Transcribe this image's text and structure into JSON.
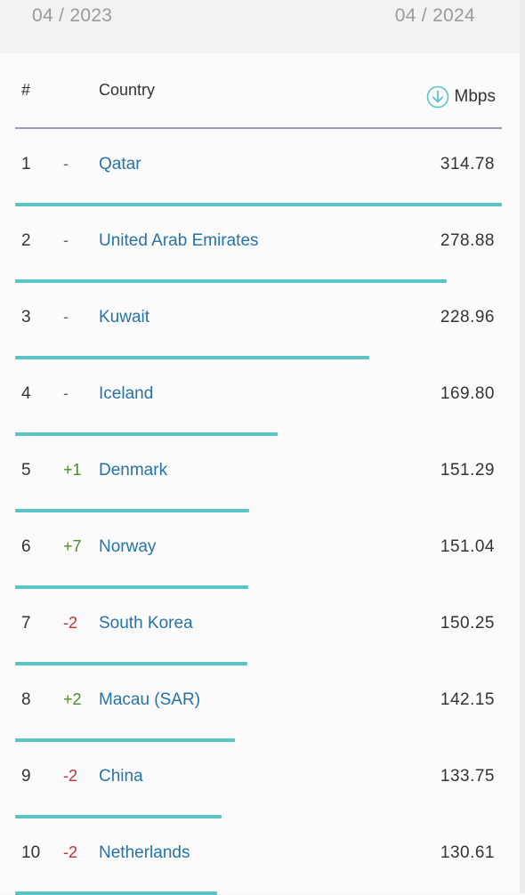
{
  "date_range": {
    "start": "04 / 2023",
    "end": "04 / 2024"
  },
  "table": {
    "header": {
      "rank": "#",
      "country": "Country",
      "speed": "Mbps"
    },
    "rows": [
      {
        "rank": "1",
        "change": "-",
        "country": "Qatar",
        "speed": "314.78"
      },
      {
        "rank": "2",
        "change": "-",
        "country": "United Arab Emirates",
        "speed": "278.88"
      },
      {
        "rank": "3",
        "change": "-",
        "country": "Kuwait",
        "speed": "228.96"
      },
      {
        "rank": "4",
        "change": "-",
        "country": "Iceland",
        "speed": "169.80"
      },
      {
        "rank": "5",
        "change": "+1",
        "country": "Denmark",
        "speed": "151.29"
      },
      {
        "rank": "6",
        "change": "+7",
        "country": "Norway",
        "speed": "151.04"
      },
      {
        "rank": "7",
        "change": "-2",
        "country": "South Korea",
        "speed": "150.25"
      },
      {
        "rank": "8",
        "change": "+2",
        "country": "Macau (SAR)",
        "speed": "142.15"
      },
      {
        "rank": "9",
        "change": "-2",
        "country": "China",
        "speed": "133.75"
      },
      {
        "rank": "10",
        "change": "-2",
        "country": "Netherlands",
        "speed": "130.61"
      }
    ]
  },
  "colors": {
    "link": "#2673a8",
    "bar": "#5cc3c6",
    "change_up": "#4e8a2a",
    "change_down": "#c0313a",
    "change_none": "#666666",
    "accent_icon": "#5cc3c6"
  },
  "icons": {
    "speed": "download-arrow-circle-icon"
  }
}
